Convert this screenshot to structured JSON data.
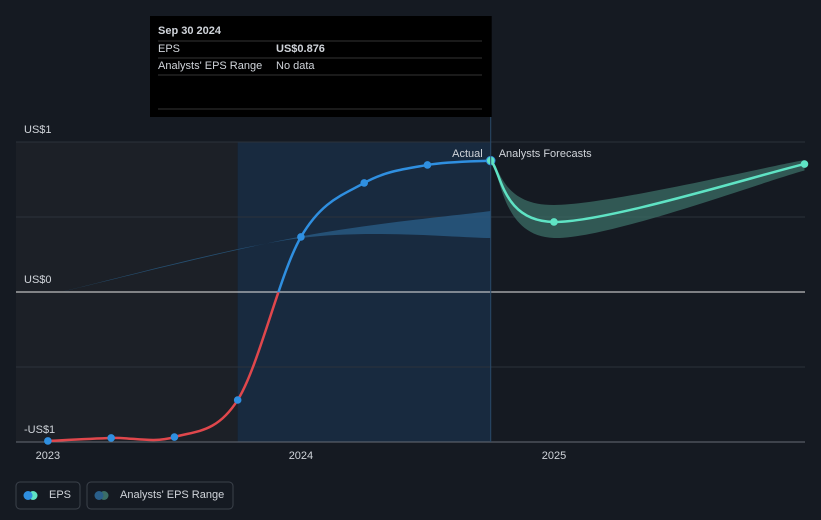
{
  "chart_data": {
    "type": "line",
    "xlim": [
      2022.874,
      2025.992
    ],
    "xticks": [
      2023,
      2024,
      2025
    ],
    "ylim": [
      -1,
      1
    ],
    "yticks": [
      {
        "value": 1,
        "label": "US$1"
      },
      {
        "value": 0.5,
        "label": null
      },
      {
        "value": 0,
        "label": "US$0"
      },
      {
        "value": -0.5,
        "label": null
      },
      {
        "value": -1,
        "label": "-US$1"
      }
    ],
    "highlight": [
      2023.75,
      2024.75
    ],
    "actual_label": "Actual",
    "forecast_label": "Analysts Forecasts",
    "series": [
      {
        "name": "EPS",
        "color": "#2f8fe0",
        "negative_color": "#e0474c",
        "x": [
          2023.0,
          2023.25,
          2023.5,
          2023.75,
          2024.0,
          2024.25,
          2024.5,
          2024.75
        ],
        "values": [
          -0.993,
          -0.973,
          -0.967,
          -0.72,
          0.367,
          0.727,
          0.847,
          0.876
        ]
      },
      {
        "color": "#5fe3c4",
        "x": [
          2024.75,
          2025.0,
          2025.99
        ],
        "values": [
          0.876,
          0.467,
          0.853
        ]
      },
      {
        "name": "Analysts' EPS Range",
        "color": "#2a5f8a",
        "x": [
          2023.05,
          2024.0,
          2024.75
        ],
        "low": [
          0,
          0.36,
          0.36
        ],
        "high": [
          0,
          0.37,
          0.54
        ]
      },
      {
        "color": "#3b6e66",
        "x": [
          2024.75,
          2025.0,
          2025.99
        ],
        "low": [
          0.876,
          0.36,
          0.81
        ],
        "high": [
          0.876,
          0.58,
          0.88
        ]
      }
    ],
    "tooltip": {
      "x": 2024.75,
      "date": "Sep 30 2024",
      "rows": [
        {
          "label": "EPS",
          "value_label": "US$0.876"
        },
        {
          "label": "Analysts' EPS Range",
          "value_label": "No data"
        }
      ]
    }
  }
}
